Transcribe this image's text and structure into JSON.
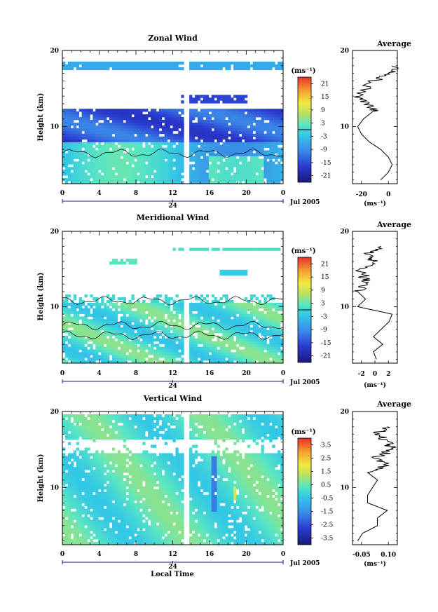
{
  "figure": {
    "panels": [
      {
        "key": "zonal",
        "title": "Zonal Wind",
        "ylabel": "Height (km)",
        "yticks": [
          "20",
          "10"
        ],
        "xticks": [
          "0",
          "4",
          "8",
          "12",
          "16",
          "20",
          "0"
        ],
        "date_mark": "24",
        "date_label": "Jul 2005",
        "unit_label": "(ms⁻¹)",
        "colorbar_ticks": [
          "21",
          "15",
          "9",
          "3",
          "-3",
          "-9",
          "-15",
          "-21"
        ],
        "colorbar_range": [
          -24,
          24
        ],
        "avg_title": "Average",
        "avg_xticks": [
          "-20",
          "0"
        ],
        "avg_xunit": "(ms⁻¹)",
        "avg_yticks": [
          "20",
          "10"
        ]
      },
      {
        "key": "meridional",
        "title": "Meridional Wind",
        "ylabel": "Height (km)",
        "yticks": [
          "20",
          "10"
        ],
        "xticks": [
          "0",
          "4",
          "8",
          "12",
          "16",
          "20",
          "0"
        ],
        "date_mark": "24",
        "date_label": "Jul 2005",
        "unit_label": "(ms⁻¹)",
        "colorbar_ticks": [
          "21",
          "15",
          "9",
          "3",
          "-3",
          "-9",
          "-15",
          "-21"
        ],
        "colorbar_range": [
          -24,
          24
        ],
        "avg_title": "Average",
        "avg_xticks": [
          "-2",
          "0",
          "2"
        ],
        "avg_xunit": "(ms⁻¹)",
        "avg_yticks": [
          "20",
          "10"
        ]
      },
      {
        "key": "vertical",
        "title": "Vertical Wind",
        "ylabel": "Height (km)",
        "yticks": [
          "20",
          "10"
        ],
        "xticks": [
          "0",
          "4",
          "8",
          "12",
          "16",
          "20",
          "0"
        ],
        "date_mark": "24",
        "date_label": "Jul 2005",
        "unit_label": "(ms⁻¹)",
        "colorbar_ticks": [
          "3.5",
          "2.5",
          "1.5",
          "0.5",
          "-0.5",
          "-1.5",
          "-2.5",
          "-3.5"
        ],
        "colorbar_range": [
          -4,
          4
        ],
        "avg_title": "Average",
        "avg_xticks": [
          "-0.05",
          "0.10"
        ],
        "avg_xunit": "(ms⁻¹)",
        "avg_yticks": [
          "20",
          "10"
        ]
      }
    ],
    "xlabel_bottom": "Local Time"
  },
  "chart_data": [
    {
      "type": "heatmap",
      "title": "Zonal Wind",
      "xlabel": "",
      "ylabel": "Height (km)",
      "x_range": [
        0,
        24
      ],
      "y_range": [
        2.5,
        20
      ],
      "color_range": [
        -24,
        24
      ],
      "data_gap_x": 13.5,
      "profile": [
        {
          "height": 3,
          "value": -6
        },
        {
          "height": 4,
          "value": -2
        },
        {
          "height": 5,
          "value": 0
        },
        {
          "height": 6,
          "value": -2
        },
        {
          "height": 7,
          "value": -6
        },
        {
          "height": 8,
          "value": -12
        },
        {
          "height": 9,
          "value": -16
        },
        {
          "height": 10,
          "value": -18
        },
        {
          "height": 11,
          "value": -15
        },
        {
          "height": 12,
          "value": -10
        },
        {
          "height": 13,
          "value": -12
        },
        {
          "height": 14,
          "value": -18
        },
        {
          "height": 16,
          "value": -10
        },
        {
          "height": 17,
          "value": 0
        },
        {
          "height": 18,
          "value": 0
        }
      ]
    },
    {
      "type": "heatmap",
      "title": "Meridional Wind",
      "xlabel": "",
      "ylabel": "Height (km)",
      "x_range": [
        0,
        24
      ],
      "y_range": [
        2.5,
        20
      ],
      "color_range": [
        -24,
        24
      ],
      "data_gap_x": 13.5,
      "profile": [
        {
          "height": 3,
          "value": 1.2
        },
        {
          "height": 4,
          "value": 1.0
        },
        {
          "height": 5,
          "value": 1.6
        },
        {
          "height": 6,
          "value": 1.0
        },
        {
          "height": 7,
          "value": 1.5
        },
        {
          "height": 8,
          "value": 2.0
        },
        {
          "height": 9,
          "value": 2.2
        },
        {
          "height": 10,
          "value": 0.0
        },
        {
          "height": 11,
          "value": 0.5
        },
        {
          "height": 12,
          "value": 0.0
        },
        {
          "height": 13,
          "value": 0.6
        },
        {
          "height": 14,
          "value": 0.4
        },
        {
          "height": 15,
          "value": 0.2
        },
        {
          "height": 16,
          "value": 1.0
        },
        {
          "height": 17,
          "value": 0.5
        },
        {
          "height": 18,
          "value": 1.5
        }
      ]
    },
    {
      "type": "heatmap",
      "title": "Vertical Wind",
      "xlabel": "Local Time",
      "ylabel": "Height (km)",
      "x_range": [
        0,
        24
      ],
      "y_range": [
        2.5,
        20
      ],
      "color_range": [
        -4,
        4
      ],
      "data_gap_x": 13.5,
      "profile": [
        {
          "height": 3,
          "value": -0.04
        },
        {
          "height": 4,
          "value": -0.03
        },
        {
          "height": 5,
          "value": 0.0
        },
        {
          "height": 6,
          "value": 0.0
        },
        {
          "height": 7,
          "value": 0.02
        },
        {
          "height": 8,
          "value": -0.02
        },
        {
          "height": 9,
          "value": -0.02
        },
        {
          "height": 10,
          "value": -0.01
        },
        {
          "height": 11,
          "value": 0.0
        },
        {
          "height": 12,
          "value": -0.02
        },
        {
          "height": 13,
          "value": 0.02
        },
        {
          "height": 14,
          "value": 0.0
        },
        {
          "height": 15,
          "value": 0.03
        },
        {
          "height": 16,
          "value": 0.02
        },
        {
          "height": 17,
          "value": 0.0
        },
        {
          "height": 18,
          "value": 0.02
        }
      ]
    }
  ]
}
